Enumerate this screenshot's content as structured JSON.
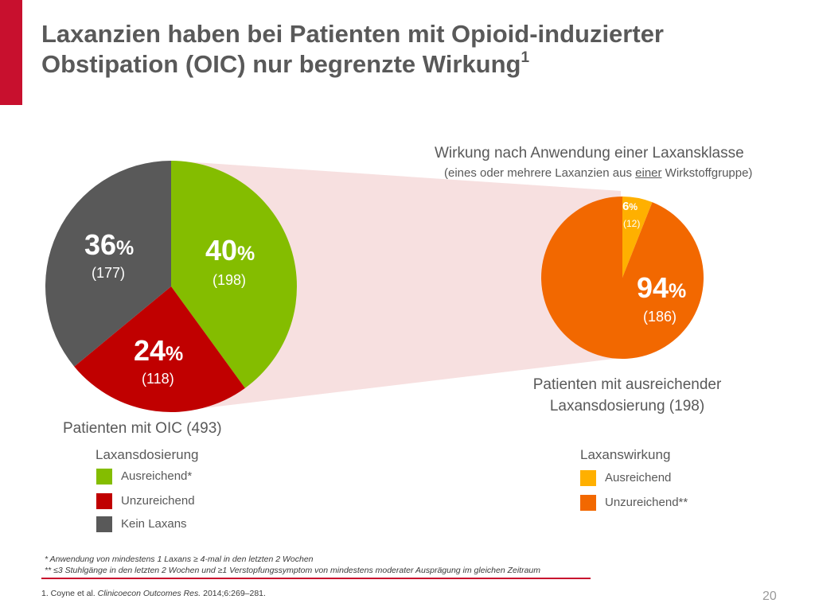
{
  "title": {
    "line1": "Laxanzien haben bei Patienten mit Opioid-induzierter",
    "line2": "Obstipation (OIC) nur begrenzte Wirkung",
    "superscript": "1"
  },
  "colors": {
    "accent": "#c8102e",
    "ausreichend_dose": "#84bd00",
    "unzureichend_dose": "#c00000",
    "kein_laxans": "#595959",
    "wirkung_ausreichend": "#ffb000",
    "wirkung_unzureichend": "#f26800",
    "connector": "#f4d6d6"
  },
  "chart_data": [
    {
      "type": "pie",
      "title": "Patienten mit OIC (493)",
      "legend_title": "Laxansdosierung",
      "slices": [
        {
          "label": "Ausreichend*",
          "percent": 40,
          "n": 198,
          "color": "#84bd00",
          "percent_text": "40",
          "n_text": "(198)"
        },
        {
          "label": "Unzureichend",
          "percent": 24,
          "n": 118,
          "color": "#c00000",
          "percent_text": "24",
          "n_text": "(118)"
        },
        {
          "label": "Kein Laxans",
          "percent": 36,
          "n": 177,
          "color": "#595959",
          "percent_text": "36",
          "n_text": "(177)"
        }
      ]
    },
    {
      "type": "pie",
      "title": "Patienten mit ausreichender Laxansdosierung (198)",
      "header": "Wirkung nach Anwendung einer Laxansklasse",
      "legend_title": "Laxanswirkung",
      "slices": [
        {
          "label": "Ausreichend",
          "percent": 6,
          "n": 12,
          "color": "#ffb000",
          "percent_text": "6",
          "n_text": "(12)"
        },
        {
          "label": "Unzureichend**",
          "percent": 94,
          "n": 186,
          "color": "#f26800",
          "percent_text": "94",
          "n_text": "(186)"
        }
      ]
    }
  ],
  "unit": "%",
  "right_header": {
    "line1": "Wirkung nach Anwendung einer Laxansklasse",
    "line2_pre": "(eines  oder mehrere Laxanzien aus ",
    "line2_underlined": "einer",
    "line2_post": " Wirkstoffgruppe)"
  },
  "left_caption": "Patienten mit OIC (493)",
  "right_caption": {
    "line1": "Patienten mit ausreichender",
    "line2": "Laxansdosierung (198)"
  },
  "legend_left": {
    "title": "Laxansdosierung",
    "items": [
      "Ausreichend*",
      "Unzureichend",
      "Kein Laxans"
    ]
  },
  "legend_right": {
    "title": "Laxanswirkung",
    "items": [
      "Ausreichend",
      "Unzureichend**"
    ]
  },
  "footnotes": {
    "f1": "* Anwendung von mindestens 1 Laxans  ≥ 4-mal in den letzten 2 Wochen",
    "f2": "** ≤3 Stuhlgänge in den letzten 2 Wochen und  ≥1 Verstopfungssymptom von mindestens moderater Ausprägung im gleichen Zeitraum"
  },
  "source": {
    "pre": "1. Coyne et al. ",
    "journal": "Clinicoecon Outcomes Res.",
    "post": " 2014;6:269–281."
  },
  "page_number": "20"
}
